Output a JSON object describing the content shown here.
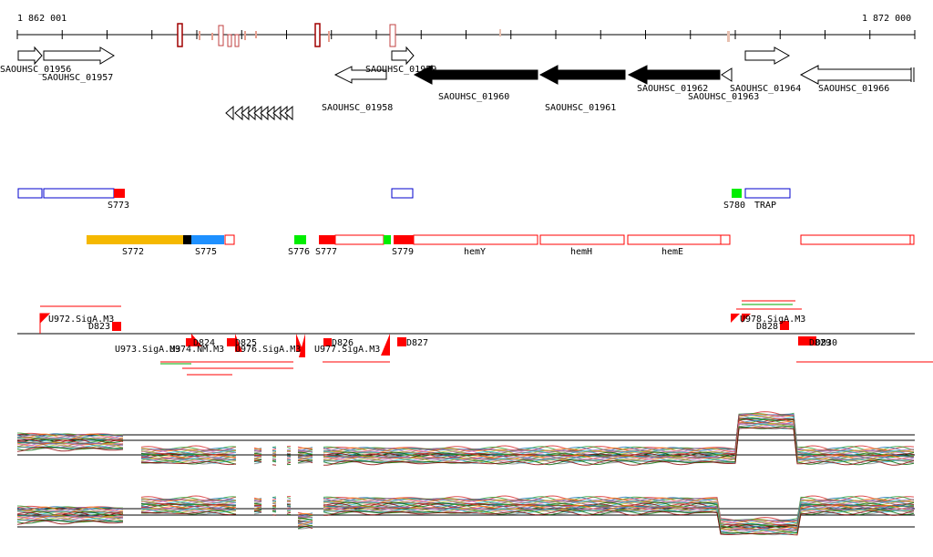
{
  "ruler": {
    "start_label": "1 862 001",
    "end_label": "1 872 000"
  },
  "genes": [
    "SAOUHSC_01956",
    "SAOUHSC_01957",
    "SAOUHSC_01958",
    "SAOUHSC_01959",
    "SAOUHSC_01960",
    "SAOUHSC_01961",
    "SAOUHSC_01962",
    "SAOUHSC_01963",
    "SAOUHSC_01964",
    "SAOUHSC_01966"
  ],
  "segments_row1": [
    "S773",
    "S780",
    "TRAP"
  ],
  "segments_row2": [
    "S772",
    "S775",
    "S776",
    "S777",
    "S779",
    "hemY",
    "hemH",
    "hemE"
  ],
  "upstream_labels": [
    "U972.SigA.M3",
    "D823",
    "U973.SigA.M3",
    "U974.NM.M3",
    "D824",
    "D825",
    "U976.SigA.M3",
    "U977.SigA.M3",
    "D826",
    "D827",
    "U978.SigA.M3",
    "D828",
    "D829",
    "D830"
  ],
  "colors": {
    "ruler": "#000000",
    "feature_red": "#ff0000",
    "feature_blue": "#0000cc",
    "segment_yellow": "#f5b800",
    "segment_blue": "#1e90ff",
    "segment_green": "#00ee00",
    "pale_red": "#e8a090"
  }
}
